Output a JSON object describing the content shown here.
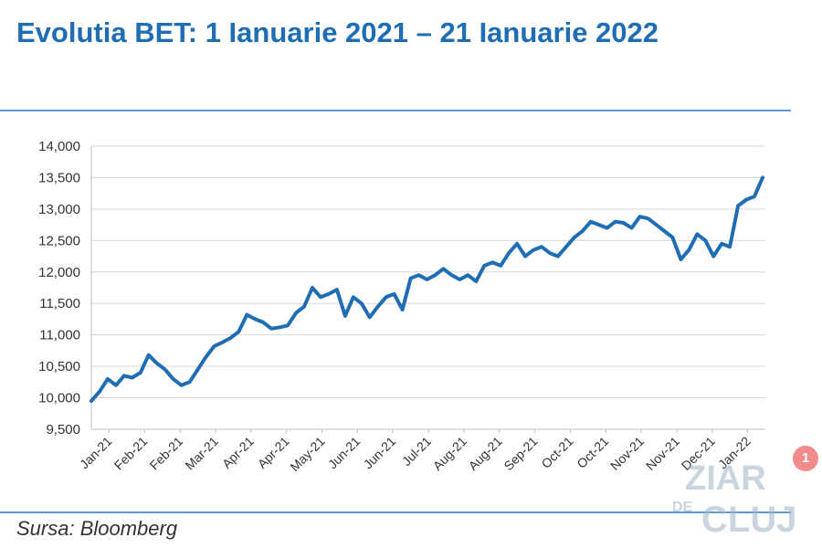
{
  "header": {
    "title": "Evolutia BET: 1 Ianuarie 2021 – 21 Ianuarie 2022"
  },
  "footer": {
    "source": "Sursa: Bloomberg"
  },
  "watermark": {
    "line1": "ZIAR",
    "line2": "DE",
    "line3": "CLUJ"
  },
  "notification": {
    "count": "1"
  },
  "colors": {
    "title": "#1f6db3",
    "line": "#1f6db3",
    "rule": "#5b9bd5",
    "grid": "#d9d9d9"
  },
  "chart_data": {
    "type": "line",
    "title": "",
    "xlabel": "",
    "ylabel": "",
    "ylim": [
      9500,
      14000
    ],
    "yticks": [
      9500,
      10000,
      10500,
      11000,
      11500,
      12000,
      12500,
      13000,
      13500,
      14000
    ],
    "ytick_labels": [
      "9,500",
      "10,000",
      "10,500",
      "11,000",
      "11,500",
      "12,000",
      "12,500",
      "13,000",
      "13,500",
      "14,000"
    ],
    "xtick_labels": [
      "Jan-21",
      "Feb-21",
      "Feb-21",
      "Mar-21",
      "Apr-21",
      "Apr-21",
      "May-21",
      "Jun-21",
      "Jun-21",
      "Jul-21",
      "Aug-21",
      "Aug-21",
      "Sep-21",
      "Oct-21",
      "Oct-21",
      "Nov-21",
      "Nov-21",
      "Dec-21",
      "Jan-22"
    ],
    "grid": true,
    "legend": "none",
    "series": [
      {
        "values": [
          9950,
          10100,
          10300,
          10200,
          10350,
          10320,
          10400,
          10680,
          10550,
          10450,
          10300,
          10200,
          10250,
          10450,
          10650,
          10820,
          10880,
          10950,
          11050,
          11320,
          11250,
          11200,
          11100,
          11120,
          11150,
          11350,
          11450,
          11750,
          11600,
          11650,
          11720,
          11300,
          11600,
          11500,
          11280,
          11450,
          11600,
          11650,
          11400,
          11900,
          11950,
          11880,
          11950,
          12050,
          11950,
          11880,
          11950,
          11850,
          12100,
          12150,
          12100,
          12300,
          12450,
          12250,
          12350,
          12400,
          12300,
          12250,
          12400,
          12550,
          12650,
          12800,
          12750,
          12700,
          12800,
          12780,
          12700,
          12880,
          12850,
          12750,
          12650,
          12550,
          12200,
          12350,
          12600,
          12500,
          12250,
          12450,
          12400,
          13050,
          13150,
          13200,
          13500
        ]
      }
    ]
  }
}
